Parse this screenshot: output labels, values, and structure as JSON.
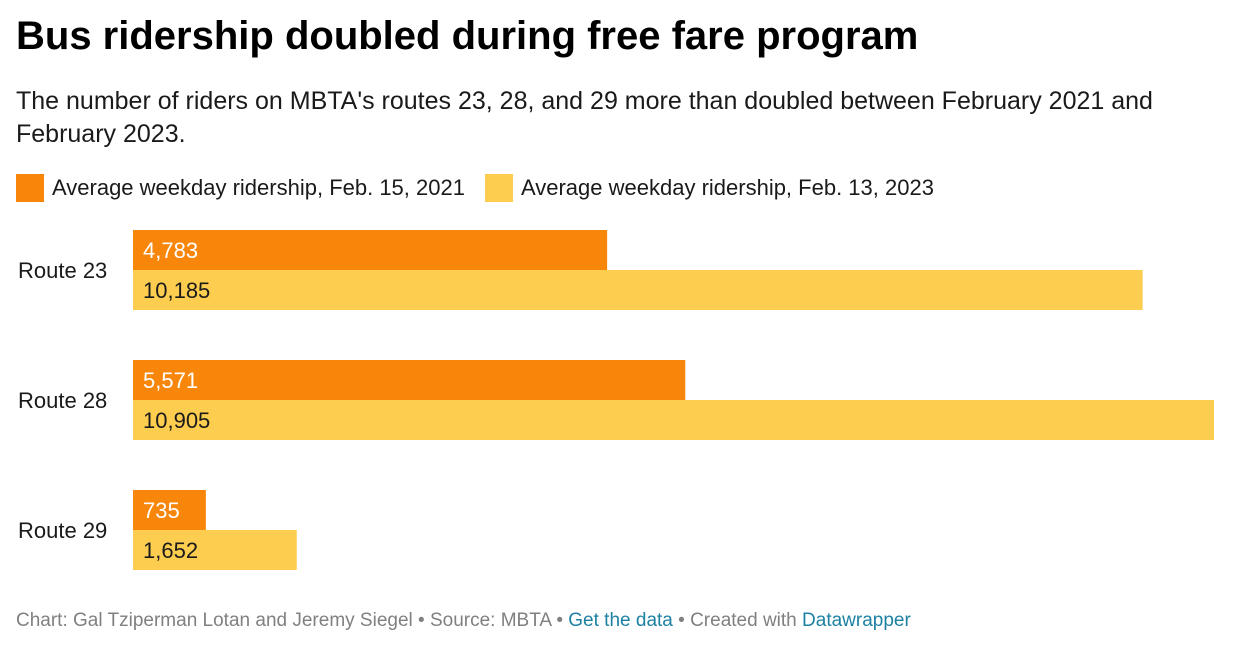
{
  "title": "Bus ridership doubled during free fare program",
  "subtitle": "The number of riders on MBTA's routes 23, 28, and 29 more than doubled between February 2021 and February 2023.",
  "colors": {
    "series_2021": "#f7860b",
    "series_2023": "#fdcd50",
    "link": "#1d81a2"
  },
  "chart_data": {
    "type": "bar",
    "orientation": "horizontal",
    "categories": [
      "Route 23",
      "Route 28",
      "Route 29"
    ],
    "series": [
      {
        "name": "Average weekday ridership, Feb. 15, 2021",
        "values": [
          4783,
          5571,
          735
        ],
        "labels": [
          "4,783",
          "5,571",
          "735"
        ]
      },
      {
        "name": "Average weekday ridership, Feb. 13, 2023",
        "values": [
          10185,
          10905,
          1652
        ],
        "labels": [
          "10,185",
          "10,905",
          "1,652"
        ]
      }
    ],
    "xlim": [
      0,
      10905
    ],
    "grid": false,
    "legend": "top"
  },
  "footer": {
    "credit": "Chart: Gal Tziperman Lotan and Jeremy Siegel",
    "source": "Source: MBTA",
    "data_link": "Get the data",
    "created_with": "Created with",
    "tool_link": "Datawrapper",
    "separator": " • "
  }
}
